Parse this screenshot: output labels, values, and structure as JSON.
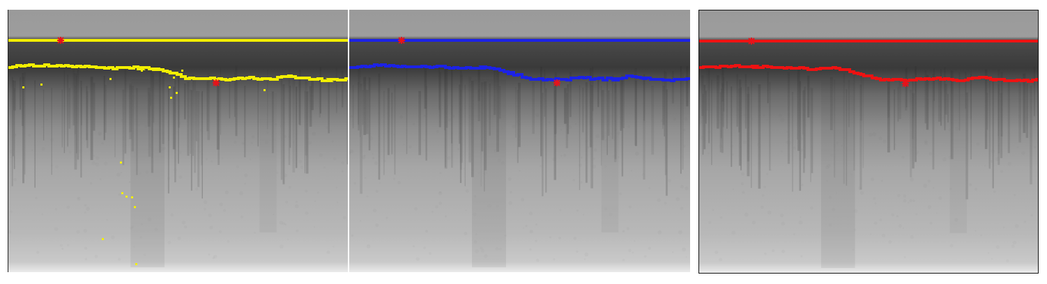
{
  "panels": [
    {
      "id": "p1",
      "trace_color": "#f2ee00",
      "marker_color": "#e8121a",
      "spurious_points": true
    },
    {
      "id": "p2",
      "trace_color": "#1c22e6",
      "marker_color": "#e8121a",
      "spurious_points": false
    },
    {
      "id": "p3",
      "trace_color": "#ee1212",
      "marker_color": "#e8121a",
      "spurious_points": false
    }
  ]
}
